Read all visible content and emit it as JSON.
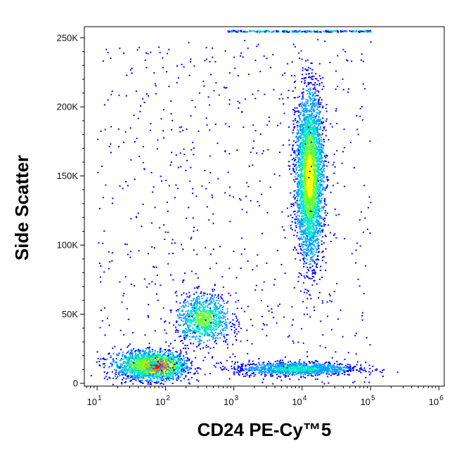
{
  "chart_data": {
    "type": "scatter",
    "title": "",
    "xlabel": "CD24 PE-Cy™5",
    "ylabel": "Side Scatter",
    "x_scale": "log",
    "xlim": [
      6.5,
      1200000
    ],
    "ylim": [
      -2000,
      258000
    ],
    "grid": false,
    "legend": "none",
    "x_ticks": [
      {
        "value": 10,
        "base": "10",
        "exp": "1"
      },
      {
        "value": 100,
        "base": "10",
        "exp": "2"
      },
      {
        "value": 1000,
        "base": "10",
        "exp": "3"
      },
      {
        "value": 10000,
        "base": "10",
        "exp": "4"
      },
      {
        "value": 100000,
        "base": "10",
        "exp": "5"
      },
      {
        "value": 1000000,
        "base": "10",
        "exp": "6"
      }
    ],
    "y_ticks": [
      {
        "value": 0,
        "label": "0"
      },
      {
        "value": 50000,
        "label": "50K"
      },
      {
        "value": 100000,
        "label": "100K"
      },
      {
        "value": 150000,
        "label": "150K"
      },
      {
        "value": 200000,
        "label": "200K"
      },
      {
        "value": 250000,
        "label": "250K"
      }
    ],
    "density_colors": [
      "#0000ff",
      "#00a0ff",
      "#00e6c8",
      "#66ff33",
      "#ffff00",
      "#ff8c00",
      "#ff0000"
    ],
    "populations": [
      {
        "log10_x_center": 1.85,
        "y_center": 13000,
        "log10_x_sd": 0.22,
        "y_sd": 5000,
        "count": 1800,
        "peak": 6
      },
      {
        "log10_x_center": 1.6,
        "y_center": 14000,
        "log10_x_sd": 0.25,
        "y_sd": 6000,
        "count": 500,
        "peak": 3
      },
      {
        "log10_x_center": 2.55,
        "y_center": 47000,
        "log10_x_sd": 0.2,
        "y_sd": 9000,
        "count": 900,
        "peak": 3
      },
      {
        "log10_x_center": 4.1,
        "y_center": 150000,
        "log10_x_sd": 0.1,
        "y_sd": 30000,
        "count": 3500,
        "peak": 4
      },
      {
        "log10_x_center": 3.9,
        "y_center": 11000,
        "log10_x_sd": 0.45,
        "y_sd": 2500,
        "count": 1100,
        "peak": 2
      }
    ]
  }
}
